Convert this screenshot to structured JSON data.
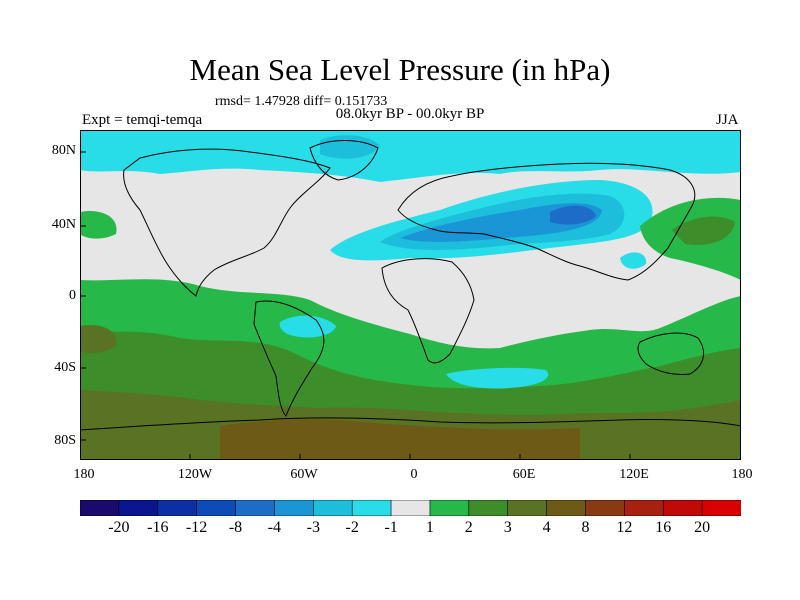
{
  "title": "Mean Sea Level Pressure (in hPa)",
  "stats": "rmsd= 1.47928 diff= 0.151733",
  "subtitle": "08.0kyr BP - 00.0kyr BP",
  "experiment": "Expt = temqi-temqa",
  "season": "JJA",
  "axes": {
    "lat_labels": [
      "80N",
      "40N",
      "0",
      "40S",
      "80S"
    ],
    "lon_labels": [
      "180",
      "120W",
      "60W",
      "0",
      "60E",
      "120E",
      "180"
    ]
  },
  "colorbar": {
    "labels": [
      "-20",
      "-16",
      "-12",
      "-8",
      "-4",
      "-3",
      "-2",
      "-1",
      "1",
      "2",
      "3",
      "4",
      "8",
      "12",
      "16",
      "20"
    ],
    "colors": [
      "#1a0a6e",
      "#0a1590",
      "#0c2fa8",
      "#0b4cb8",
      "#1d6cc8",
      "#1a95d6",
      "#1cbedc",
      "#28dce8",
      "#e6e6e6",
      "#27b84a",
      "#3d8e2a",
      "#5a7224",
      "#6d5a17",
      "#8a3a12",
      "#a82010",
      "#c00a08",
      "#d80000"
    ]
  },
  "chart_data": {
    "type": "filled-contour-map",
    "title": "Mean Sea Level Pressure (in hPa)",
    "variable_units": "hPa",
    "lon_range": [
      -180,
      180
    ],
    "lat_range": [
      -90,
      90
    ],
    "contour_levels": [
      -20,
      -16,
      -12,
      -8,
      -4,
      -3,
      -2,
      -1,
      1,
      2,
      3,
      4,
      8,
      12,
      16,
      20
    ],
    "rmsd": 1.47928,
    "diff": 0.151733
  }
}
